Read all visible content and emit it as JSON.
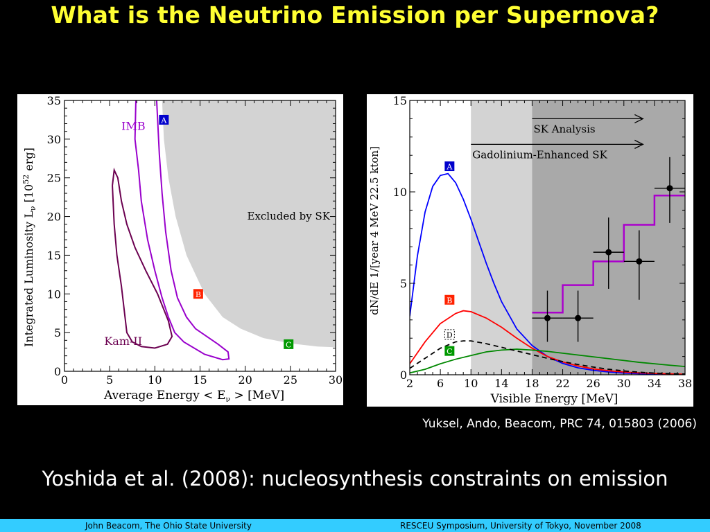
{
  "slide": {
    "title": "What is the Neutrino Emission per Supernova?",
    "citation": "Yuksel, Ando, Beacom, PRC 74, 015803 (2006)",
    "subtitle": "Yoshida et al. (2008): nucleosynthesis constraints on emission",
    "footer_left": "John Beacom, The Ohio State University",
    "footer_right": "RESCEU Symposium, University of Tokyo, November 2008",
    "colors": {
      "background": "#000000",
      "title": "#ffff33",
      "footer_bar": "#33ccff"
    }
  },
  "chart_data": [
    {
      "type": "line",
      "xlabel": "Average  Energy    < E",
      "xlabel_sub": "ν",
      "xlabel_unit": " >    [MeV]",
      "ylabel_main": "Integrated  Luminosity    L",
      "ylabel_sub": "ν",
      "ylabel_unit_pre": "[10",
      "ylabel_unit_sup": "52",
      "ylabel_unit_post": " erg]",
      "xlim": [
        0,
        30
      ],
      "ylim": [
        0,
        35
      ],
      "xticks": [
        0,
        5,
        10,
        15,
        20,
        25,
        30
      ],
      "yticks": [
        0,
        5,
        10,
        15,
        20,
        25,
        30,
        35
      ],
      "excluded_region": {
        "label": "Excluded by SK",
        "color": "#d3d3d3",
        "boundary": [
          [
            10.8,
            35
          ],
          [
            11,
            30
          ],
          [
            11.5,
            25
          ],
          [
            12.3,
            20
          ],
          [
            13.5,
            15
          ],
          [
            15.5,
            10
          ],
          [
            17.5,
            7
          ],
          [
            19.5,
            5.5
          ],
          [
            22,
            4.3
          ],
          [
            25,
            3.6
          ],
          [
            28,
            3.2
          ],
          [
            30,
            3.1
          ]
        ]
      },
      "contours": [
        {
          "name": "IMB",
          "color": "#9900cc",
          "points": [
            [
              7.9,
              35
            ],
            [
              7.8,
              30
            ],
            [
              8.2,
              26
            ],
            [
              8.5,
              22
            ],
            [
              9.2,
              17
            ],
            [
              10,
              13
            ],
            [
              10.8,
              9.5
            ],
            [
              11.5,
              7
            ],
            [
              12.2,
              5
            ],
            [
              13.2,
              3.8
            ],
            [
              15.5,
              2.2
            ],
            [
              17.5,
              1.5
            ],
            [
              18.2,
              1.6
            ],
            [
              18.1,
              2.5
            ],
            [
              17,
              3.5
            ],
            [
              14.5,
              5.5
            ],
            [
              13.5,
              7
            ],
            [
              12.5,
              9.5
            ],
            [
              11.8,
              13
            ],
            [
              11.2,
              18
            ],
            [
              10.8,
              23
            ],
            [
              10.5,
              28
            ],
            [
              10.2,
              35
            ]
          ]
        },
        {
          "name": "Kam-II",
          "color": "#6b0050",
          "points": [
            [
              5.3,
              24
            ],
            [
              5.5,
              26
            ],
            [
              5.9,
              25
            ],
            [
              6.3,
              22
            ],
            [
              6.9,
              19
            ],
            [
              7.8,
              16
            ],
            [
              9,
              13
            ],
            [
              10.3,
              10
            ],
            [
              11.5,
              6.5
            ],
            [
              11.9,
              4.5
            ],
            [
              11.4,
              3.5
            ],
            [
              10,
              3
            ],
            [
              8.5,
              3.2
            ],
            [
              7.5,
              3.8
            ],
            [
              6.9,
              5
            ],
            [
              6.7,
              7
            ],
            [
              6.3,
              11
            ],
            [
              5.8,
              15
            ],
            [
              5.5,
              19
            ],
            [
              5.3,
              24
            ]
          ]
        }
      ],
      "markers": [
        {
          "label": "A",
          "x": 11,
          "y": 32.5,
          "color": "#0000cc"
        },
        {
          "label": "B",
          "x": 14.8,
          "y": 10,
          "color": "#ff2200"
        },
        {
          "label": "C",
          "x": 24.8,
          "y": 3.5,
          "color": "#009900"
        }
      ]
    },
    {
      "type": "line",
      "xlabel": "Visible Energy [MeV]",
      "ylabel": "dN/dE  1/[year  4 MeV  22.5 kton]",
      "xlim": [
        2,
        38
      ],
      "ylim": [
        0,
        15
      ],
      "xticks": [
        2,
        6,
        10,
        14,
        18,
        22,
        26,
        30,
        34,
        38
      ],
      "yticks": [
        0,
        5,
        10,
        15
      ],
      "shaded_regions": [
        {
          "label": "Gadolinium-Enhanced SK",
          "from": 10,
          "to": 38,
          "color": "#d3d3d3"
        },
        {
          "label": "SK Analysis",
          "from": 18,
          "to": 38,
          "color": "#a9a9a9"
        }
      ],
      "series": [
        {
          "name": "A",
          "color": "#0000ff",
          "dashed": false,
          "x": [
            2,
            3,
            4,
            5,
            6,
            7,
            8,
            9,
            10,
            11,
            12,
            13,
            14,
            16,
            18,
            20,
            22,
            24,
            26,
            28,
            30,
            32,
            34,
            36,
            38
          ],
          "y": [
            3.2,
            6.5,
            8.9,
            10.3,
            10.9,
            11.0,
            10.5,
            9.6,
            8.5,
            7.3,
            6.1,
            5.0,
            4.0,
            2.5,
            1.6,
            1.0,
            0.62,
            0.38,
            0.24,
            0.15,
            0.09,
            0.06,
            0.04,
            0.03,
            0.02
          ]
        },
        {
          "name": "B",
          "color": "#ff0000",
          "dashed": false,
          "x": [
            2,
            4,
            6,
            8,
            9,
            10,
            12,
            14,
            16,
            18,
            20,
            22,
            24,
            26,
            28,
            30,
            32,
            34,
            36,
            38
          ],
          "y": [
            0.6,
            1.8,
            2.8,
            3.35,
            3.5,
            3.45,
            3.1,
            2.6,
            2.0,
            1.45,
            1.0,
            0.7,
            0.48,
            0.32,
            0.22,
            0.15,
            0.1,
            0.07,
            0.05,
            0.03
          ]
        },
        {
          "name": "C",
          "color": "#008800",
          "dashed": false,
          "x": [
            2,
            4,
            6,
            8,
            10,
            12,
            14,
            16,
            18,
            20,
            22,
            24,
            26,
            28,
            30,
            32,
            34,
            36,
            38
          ],
          "y": [
            0.1,
            0.3,
            0.6,
            0.85,
            1.05,
            1.25,
            1.35,
            1.4,
            1.35,
            1.28,
            1.18,
            1.08,
            0.98,
            0.88,
            0.78,
            0.68,
            0.6,
            0.52,
            0.45
          ]
        },
        {
          "name": "D",
          "color": "#000000",
          "dashed": true,
          "x": [
            2,
            4,
            6,
            8,
            9,
            10,
            12,
            14,
            16,
            18,
            20,
            22,
            24,
            26,
            28,
            30,
            32,
            34,
            36,
            38
          ],
          "y": [
            0.35,
            0.9,
            1.45,
            1.8,
            1.85,
            1.85,
            1.7,
            1.5,
            1.3,
            1.1,
            0.9,
            0.72,
            0.56,
            0.42,
            0.3,
            0.21,
            0.14,
            0.09,
            0.06,
            0.04
          ]
        }
      ],
      "histogram": {
        "color": "#aa00cc",
        "steps": [
          [
            18,
            22,
            3.4
          ],
          [
            22,
            26,
            4.9
          ],
          [
            26,
            30,
            6.2
          ],
          [
            30,
            34,
            8.2
          ],
          [
            34,
            38,
            9.8
          ]
        ]
      },
      "data_points": [
        {
          "x": 20,
          "y": 3.1,
          "yerr": [
            1.3,
            1.5
          ],
          "xerr": 2
        },
        {
          "x": 24,
          "y": 3.1,
          "yerr": [
            1.3,
            1.5
          ],
          "xerr": 2
        },
        {
          "x": 28,
          "y": 6.7,
          "yerr": [
            2.0,
            1.9
          ],
          "xerr": 2
        },
        {
          "x": 32,
          "y": 6.2,
          "yerr": [
            2.1,
            1.7
          ],
          "xerr": 2
        },
        {
          "x": 36,
          "y": 10.2,
          "yerr": [
            1.9,
            1.7
          ],
          "xerr": 2
        }
      ],
      "markers": [
        {
          "label": "A",
          "x": 7.2,
          "y": 11.4,
          "color": "#0000cc",
          "style": "filled"
        },
        {
          "label": "B",
          "x": 7.2,
          "y": 4.1,
          "color": "#ff2200",
          "style": "filled"
        },
        {
          "label": "D",
          "x": 7.2,
          "y": 2.2,
          "color": "#000000",
          "style": "dashed"
        },
        {
          "label": "C",
          "x": 7.2,
          "y": 1.3,
          "color": "#009900",
          "style": "filled"
        }
      ],
      "arrows": [
        {
          "label": "SK Analysis",
          "from": 18,
          "to": 32.5,
          "y": 14.0
        },
        {
          "label": "Gadolinium-Enhanced SK",
          "from": 10,
          "to": 32.5,
          "y": 12.6
        }
      ]
    }
  ]
}
